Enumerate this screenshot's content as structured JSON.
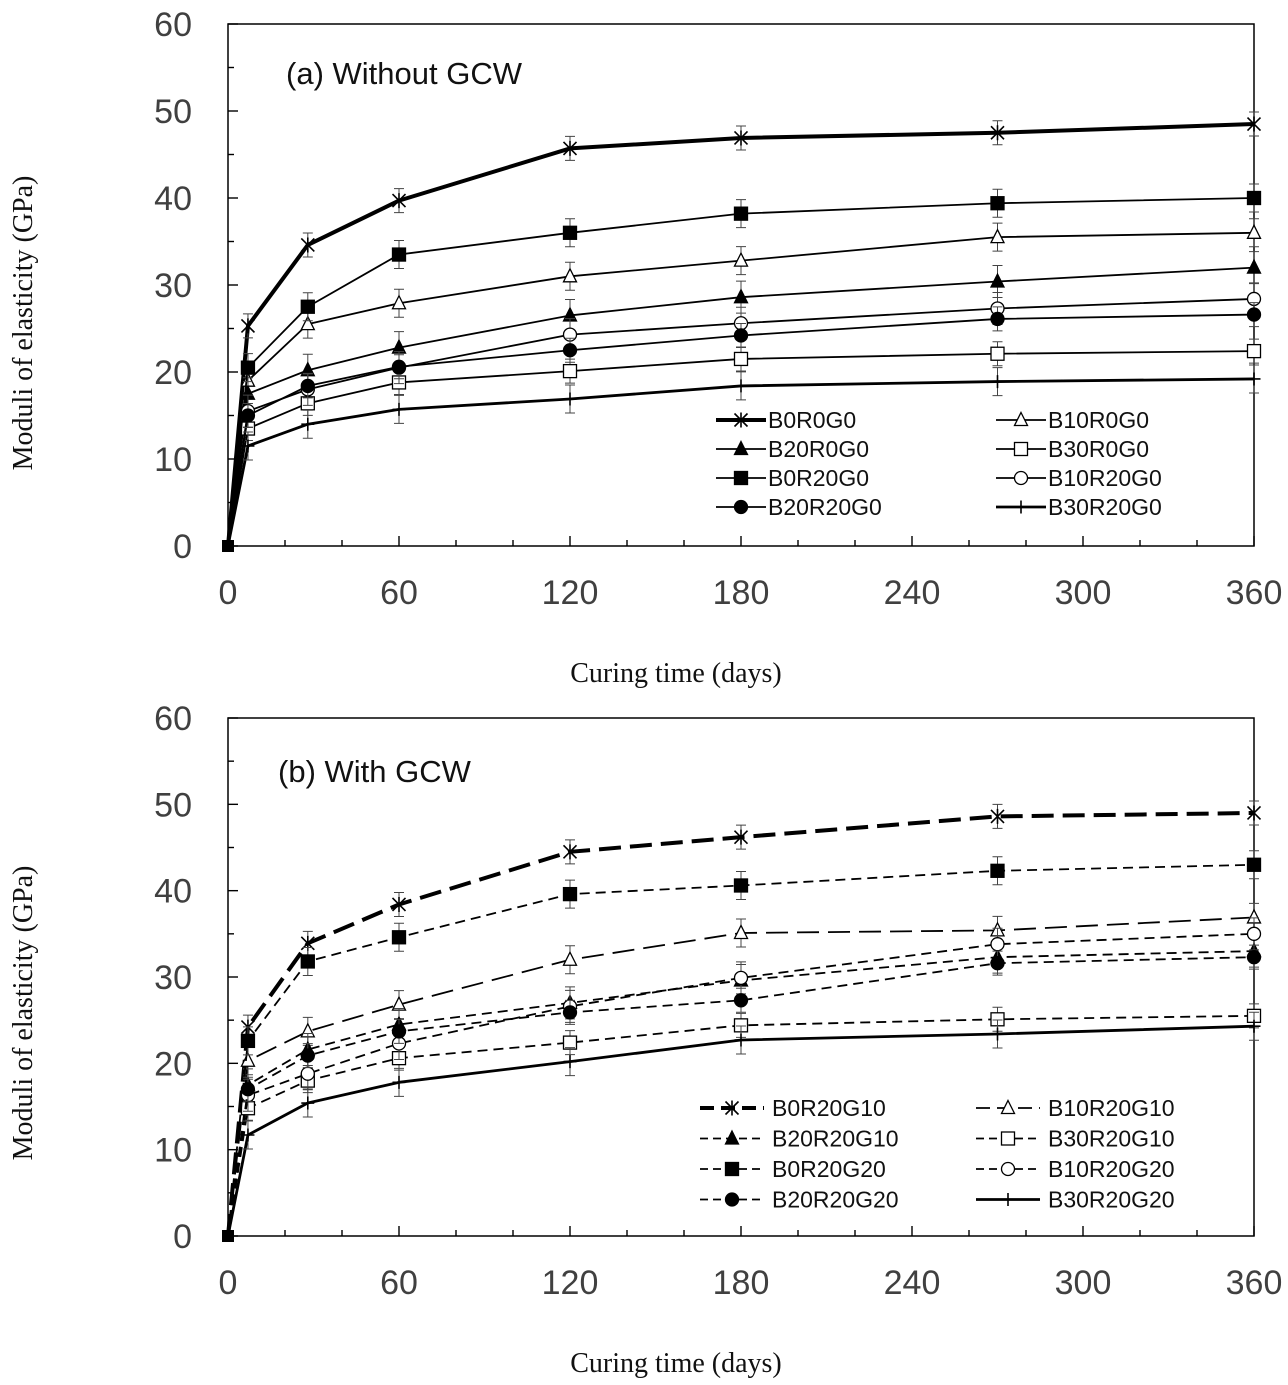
{
  "chart_data": [
    {
      "type": "line",
      "title": "(a) Without GCW",
      "xlabel": "Curing time (days)",
      "ylabel": "Moduli of elasticity (GPa)",
      "xlim": [
        0,
        360
      ],
      "ylim": [
        0,
        60
      ],
      "xticks": [
        "0",
        "60",
        "120",
        "180",
        "240",
        "300",
        "360"
      ],
      "yticks": [
        "0",
        "10",
        "20",
        "30",
        "40",
        "50",
        "60"
      ],
      "x": [
        0,
        7,
        28,
        60,
        120,
        180,
        270,
        360
      ],
      "series": [
        {
          "name": "B0R0G0",
          "marker": "star",
          "dash": "solid",
          "width": 4,
          "values": [
            0,
            25.3,
            34.6,
            39.7,
            45.7,
            46.9,
            47.5,
            48.5
          ]
        },
        {
          "name": "B10R0G0",
          "marker": "triangle-open",
          "dash": "solid",
          "width": 1.8,
          "values": [
            0,
            19.0,
            25.5,
            27.9,
            31.0,
            32.8,
            35.5,
            36.0
          ]
        },
        {
          "name": "B20R0G0",
          "marker": "triangle-filled",
          "dash": "solid",
          "width": 1.8,
          "values": [
            0,
            17.5,
            20.2,
            22.8,
            26.5,
            28.6,
            30.4,
            32.0
          ]
        },
        {
          "name": "B30R0G0",
          "marker": "square-open",
          "dash": "solid",
          "width": 1.8,
          "values": [
            0,
            13.5,
            16.4,
            18.8,
            20.1,
            21.5,
            22.1,
            22.4
          ]
        },
        {
          "name": "B0R20G0",
          "marker": "square-filled",
          "dash": "solid",
          "width": 1.8,
          "values": [
            0,
            20.5,
            27.5,
            33.5,
            36.0,
            38.2,
            39.4,
            40.0
          ]
        },
        {
          "name": "B10R20G0",
          "marker": "circle-open",
          "dash": "solid",
          "width": 1.8,
          "values": [
            0,
            15.5,
            18.0,
            20.5,
            24.3,
            25.6,
            27.3,
            28.4
          ]
        },
        {
          "name": "B20R20G0",
          "marker": "circle-filled",
          "dash": "solid",
          "width": 1.8,
          "values": [
            0,
            15.0,
            18.4,
            20.6,
            22.5,
            24.2,
            26.1,
            26.6
          ]
        },
        {
          "name": "B30R20G0",
          "marker": "plus",
          "dash": "solid",
          "width": 2.8,
          "values": [
            0,
            11.5,
            14.0,
            15.7,
            16.9,
            18.4,
            18.9,
            19.2
          ]
        }
      ]
    },
    {
      "type": "line",
      "title": "(b) With GCW",
      "xlabel": "Curing time (days)",
      "ylabel": "Moduli of elasticity (GPa)",
      "xlim": [
        0,
        360
      ],
      "ylim": [
        0,
        60
      ],
      "xticks": [
        "0",
        "60",
        "120",
        "180",
        "240",
        "300",
        "360"
      ],
      "yticks": [
        "0",
        "10",
        "20",
        "30",
        "40",
        "50",
        "60"
      ],
      "x": [
        0,
        7,
        28,
        60,
        120,
        180,
        270,
        360
      ],
      "series": [
        {
          "name": "B0R20G10",
          "marker": "star",
          "dash": "dash-long",
          "width": 4,
          "values": [
            0,
            24.2,
            33.9,
            38.4,
            44.5,
            46.2,
            48.6,
            49.0
          ]
        },
        {
          "name": "B10R20G10",
          "marker": "triangle-open",
          "dash": "dash-long",
          "width": 1.8,
          "values": [
            0,
            20.3,
            23.7,
            26.8,
            32.0,
            35.1,
            35.4,
            36.9
          ]
        },
        {
          "name": "B20R20G10",
          "marker": "triangle-filled",
          "dash": "dash",
          "width": 1.8,
          "values": [
            0,
            17.5,
            21.6,
            24.5,
            27.0,
            29.6,
            32.3,
            33.0
          ]
        },
        {
          "name": "B30R20G10",
          "marker": "square-open",
          "dash": "dash",
          "width": 1.8,
          "values": [
            0,
            14.8,
            18.0,
            20.6,
            22.4,
            24.4,
            25.1,
            25.5
          ]
        },
        {
          "name": "B0R20G20",
          "marker": "square-filled",
          "dash": "dash",
          "width": 1.8,
          "values": [
            0,
            22.6,
            31.8,
            34.6,
            39.6,
            40.6,
            42.3,
            43.0
          ]
        },
        {
          "name": "B10R20G20",
          "marker": "circle-open",
          "dash": "dash",
          "width": 1.8,
          "values": [
            0,
            16.3,
            18.8,
            22.3,
            26.6,
            29.9,
            33.8,
            35.0
          ]
        },
        {
          "name": "B20R20G20",
          "marker": "circle-filled",
          "dash": "dash",
          "width": 1.8,
          "values": [
            0,
            17.0,
            20.9,
            23.7,
            25.9,
            27.3,
            31.6,
            32.3
          ]
        },
        {
          "name": "B30R20G20",
          "marker": "plus",
          "dash": "solid",
          "width": 2.8,
          "values": [
            0,
            11.7,
            15.4,
            17.8,
            20.2,
            22.7,
            23.4,
            24.3
          ]
        }
      ]
    }
  ]
}
